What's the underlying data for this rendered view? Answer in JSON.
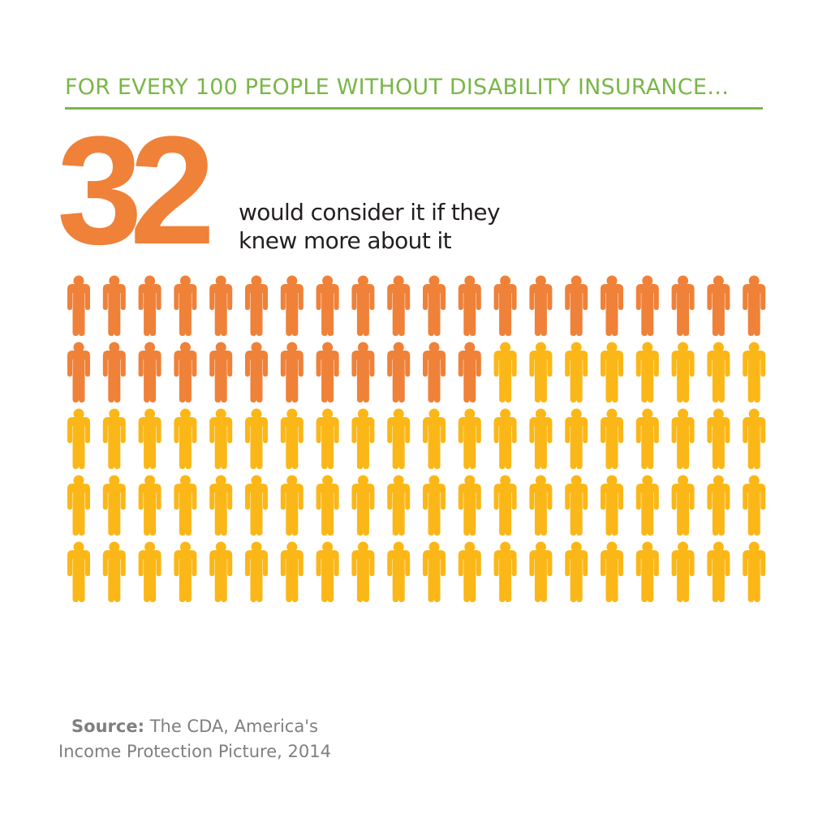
{
  "headline": "FOR EVERY 100 PEOPLE WITHOUT DISABILITY INSURANCE…",
  "stat": {
    "number": "32",
    "caption_line1": "would consider it if they",
    "caption_line2": "knew more about it"
  },
  "source": {
    "label": "Source:",
    "line1": "The CDA, America's",
    "line2": "Income Protection Picture, 2014"
  },
  "colors": {
    "accent_green": "#7ab648",
    "highlight_orange": "#ef8139",
    "base_yellow": "#fbb717",
    "text_dark": "#231f20",
    "source_gray": "#7f7f7f"
  },
  "chart_data": {
    "type": "pictogram",
    "total": 100,
    "rows": 5,
    "columns": 20,
    "highlighted": 32,
    "icon": "person-icon"
  }
}
